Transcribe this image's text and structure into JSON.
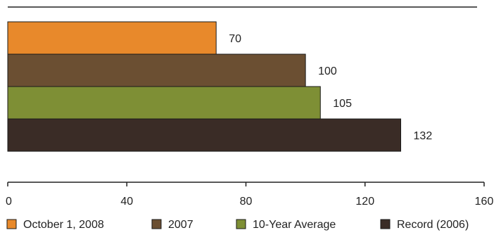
{
  "chart_data": {
    "type": "bar",
    "orientation": "horizontal",
    "title": "",
    "xlabel": "",
    "ylabel": "",
    "xlim": [
      0,
      160
    ],
    "x_ticks": [
      0,
      40,
      80,
      120,
      160
    ],
    "grid": false,
    "legend_position": "bottom",
    "series": [
      {
        "name": "October 1, 2008",
        "value": 70,
        "color": "#E8892B"
      },
      {
        "name": "2007",
        "value": 100,
        "color": "#6B4F32"
      },
      {
        "name": "10-Year Average",
        "value": 105,
        "color": "#7E8F35"
      },
      {
        "name": "Record (2006)",
        "value": 132,
        "color": "#3A2C26"
      }
    ]
  }
}
